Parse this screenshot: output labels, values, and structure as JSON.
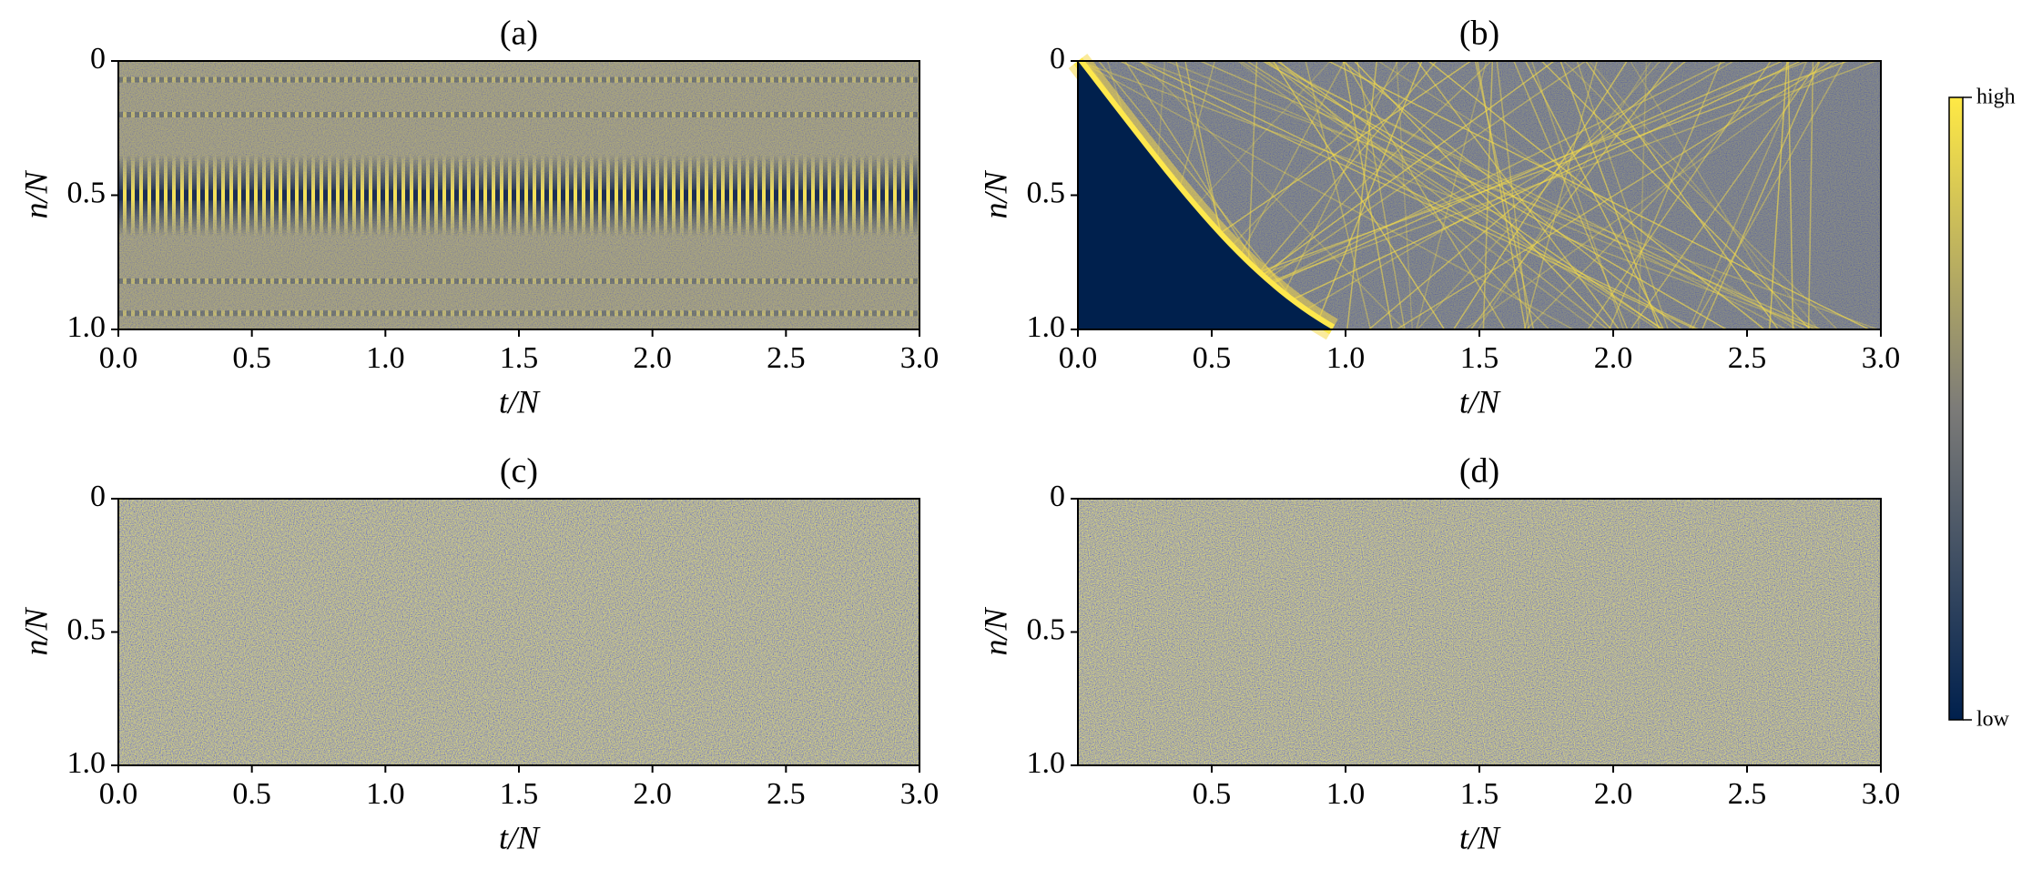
{
  "chart_data": [
    {
      "type": "heatmap",
      "title": "(a)",
      "xlabel": "t/N",
      "ylabel": "n/N",
      "xlim": [
        0,
        3
      ],
      "ylim": [
        1,
        0
      ],
      "xticks": [
        {
          "value": 0,
          "label": "0.0"
        },
        0.5,
        {
          "value": 1,
          "label": "1.0"
        },
        1.5,
        {
          "value": 2,
          "label": "2.0"
        },
        2.5,
        {
          "value": 3,
          "label": "3.0"
        }
      ],
      "yticks": [
        0,
        0.5,
        {
          "value": 1,
          "label": "1.0"
        }
      ]
    },
    {
      "type": "heatmap",
      "title": "(b)",
      "xlabel": "t/N",
      "ylabel": "n/N",
      "xlim": [
        0,
        3
      ],
      "ylim": [
        1,
        0
      ],
      "xticks": [
        {
          "value": 0,
          "label": "0.0"
        },
        0.5,
        {
          "value": 1,
          "label": "1.0"
        },
        1.5,
        {
          "value": 2,
          "label": "2.0"
        },
        2.5,
        {
          "value": 3,
          "label": "3.0"
        }
      ],
      "yticks": [
        0,
        0.5,
        {
          "value": 1,
          "label": "1.0"
        }
      ]
    },
    {
      "type": "heatmap",
      "title": "(c)",
      "xlabel": "t/N",
      "ylabel": "n/N",
      "xlim": [
        0,
        3
      ],
      "ylim": [
        1,
        0
      ],
      "xticks": [
        {
          "value": 0,
          "label": "0.0"
        },
        0.5,
        {
          "value": 1,
          "label": "1.0"
        },
        1.5,
        {
          "value": 2,
          "label": "2.0"
        },
        2.5,
        {
          "value": 3,
          "label": "3.0"
        }
      ],
      "yticks": [
        0,
        0.5,
        {
          "value": 1,
          "label": "1.0"
        }
      ]
    },
    {
      "type": "heatmap",
      "title": "(d)",
      "xlabel": "t/N",
      "ylabel": "n/N",
      "xlim": [
        0,
        3
      ],
      "ylim": [
        1,
        0
      ],
      "xticks": [
        0.5,
        {
          "value": 1,
          "label": "1.0"
        },
        1.5,
        {
          "value": 2,
          "label": "2.0"
        },
        2.5,
        {
          "value": 3,
          "label": "3.0"
        }
      ],
      "yticks": [
        0,
        0.5,
        {
          "value": 1,
          "label": "1.0"
        }
      ]
    }
  ],
  "colorbar": {
    "high": "high",
    "low": "low"
  }
}
